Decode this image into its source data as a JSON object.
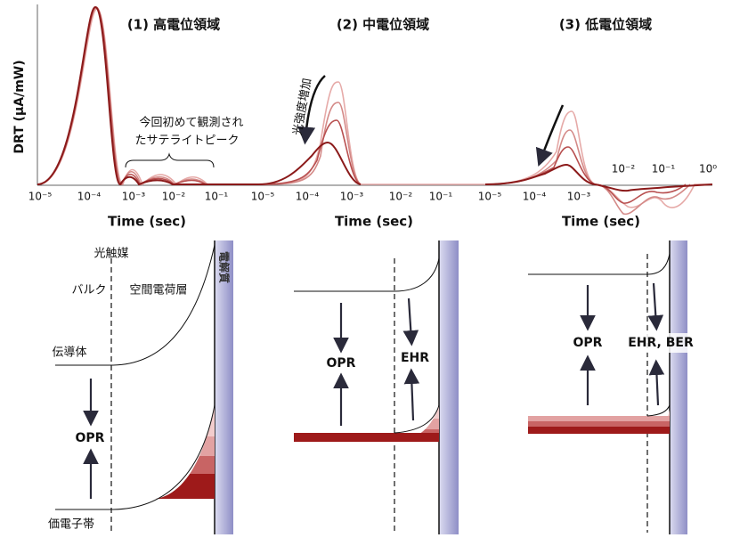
{
  "plots": {
    "y_axis_label": "DRT (μA/mW)",
    "panels": [
      {
        "title": "(1) 高電位領域",
        "x_label": "Time (sec)",
        "tick_labels": [
          "10⁻⁵",
          "10⁻⁴",
          "10⁻³",
          "10⁻²",
          "10⁻¹"
        ],
        "annotation_lines": [
          "今回初めて観測され",
          "たサテライトピーク"
        ]
      },
      {
        "title": "(2) 中電位領域",
        "x_label": "Time (sec)",
        "tick_labels": [
          "10⁻⁵",
          "10⁻⁴",
          "10⁻³",
          "10⁻²",
          "10⁻¹"
        ],
        "annotation": "光強度増加"
      },
      {
        "title": "(3) 低電位領域",
        "x_label": "Time (sec)",
        "tick_labels": [
          "10⁻⁵",
          "10⁻⁴",
          "10⁻³",
          "10⁻²",
          "10⁻¹",
          "10⁰"
        ]
      }
    ]
  },
  "band_diagrams": {
    "photocatalyst": "光触媒",
    "bulk": "バルク",
    "space_charge_layer": "空間電荷層",
    "conduction_band": "伝導体",
    "valence_band": "価電子帯",
    "electrolyte": "電解質",
    "panels": [
      {
        "labels": [
          "OPR"
        ]
      },
      {
        "labels": [
          "OPR",
          "EHR"
        ]
      },
      {
        "labels": [
          "OPR",
          "EHR, BER"
        ]
      }
    ]
  }
}
